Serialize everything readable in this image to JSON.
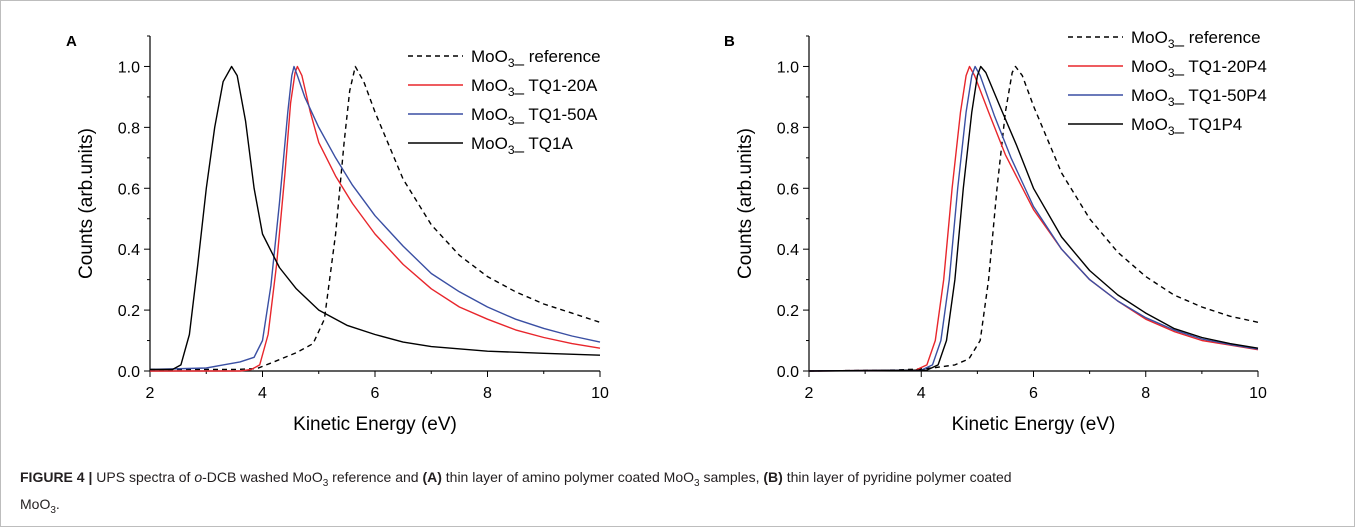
{
  "colors": {
    "red": "#e8262c",
    "blue": "#3a4fa3",
    "black": "#000000"
  },
  "chart_data": [
    {
      "type": "line",
      "panel_label": "A",
      "xlabel": "Kinetic Energy (eV)",
      "ylabel": "Counts (arb.units)",
      "xlim": [
        2,
        10
      ],
      "ylim": [
        0,
        1.1
      ],
      "xticks": [
        "2",
        "4",
        "6",
        "8",
        "10"
      ],
      "yticks": [
        "0.0",
        "0.2",
        "0.4",
        "0.6",
        "0.8",
        "1.0"
      ],
      "legend_position": "top-right",
      "series": [
        {
          "name": "MoO3_ reference",
          "legend_main": "MoO",
          "legend_sub": "3",
          "legend_suffix": "_ reference",
          "color": "#000000",
          "dash": true,
          "points": [
            [
              2,
              0.005
            ],
            [
              3.5,
              0.005
            ],
            [
              3.9,
              0.008
            ],
            [
              4.2,
              0.03
            ],
            [
              4.6,
              0.06
            ],
            [
              4.9,
              0.09
            ],
            [
              5.1,
              0.17
            ],
            [
              5.3,
              0.45
            ],
            [
              5.45,
              0.75
            ],
            [
              5.55,
              0.92
            ],
            [
              5.65,
              1.0
            ],
            [
              5.8,
              0.95
            ],
            [
              6.0,
              0.85
            ],
            [
              6.5,
              0.63
            ],
            [
              7.0,
              0.48
            ],
            [
              7.5,
              0.38
            ],
            [
              8.0,
              0.31
            ],
            [
              8.5,
              0.26
            ],
            [
              9.0,
              0.22
            ],
            [
              9.5,
              0.19
            ],
            [
              10,
              0.16
            ]
          ]
        },
        {
          "name": "MoO3_ TQ1-20A",
          "legend_main": "MoO",
          "legend_sub": "3",
          "legend_suffix": "_ TQ1-20A",
          "color": "#e8262c",
          "dash": false,
          "points": [
            [
              2,
              0.0
            ],
            [
              3.6,
              0.0
            ],
            [
              3.8,
              0.005
            ],
            [
              3.95,
              0.02
            ],
            [
              4.1,
              0.12
            ],
            [
              4.25,
              0.35
            ],
            [
              4.4,
              0.65
            ],
            [
              4.5,
              0.88
            ],
            [
              4.58,
              0.98
            ],
            [
              4.62,
              1.0
            ],
            [
              4.7,
              0.97
            ],
            [
              4.85,
              0.85
            ],
            [
              5.0,
              0.75
            ],
            [
              5.3,
              0.64
            ],
            [
              5.6,
              0.55
            ],
            [
              6.0,
              0.45
            ],
            [
              6.5,
              0.35
            ],
            [
              7.0,
              0.27
            ],
            [
              7.5,
              0.21
            ],
            [
              8.0,
              0.17
            ],
            [
              8.5,
              0.135
            ],
            [
              9.0,
              0.11
            ],
            [
              9.5,
              0.09
            ],
            [
              10,
              0.075
            ]
          ]
        },
        {
          "name": "MoO3_ TQ1-50A",
          "legend_main": "MoO",
          "legend_sub": "3",
          "legend_suffix": "_ TQ1-50A",
          "color": "#3a4fa3",
          "dash": false,
          "points": [
            [
              2,
              0.005
            ],
            [
              3.0,
              0.01
            ],
            [
              3.3,
              0.02
            ],
            [
              3.6,
              0.03
            ],
            [
              3.85,
              0.045
            ],
            [
              4.0,
              0.1
            ],
            [
              4.15,
              0.28
            ],
            [
              4.3,
              0.55
            ],
            [
              4.45,
              0.85
            ],
            [
              4.52,
              0.97
            ],
            [
              4.56,
              1.0
            ],
            [
              4.62,
              0.97
            ],
            [
              4.75,
              0.9
            ],
            [
              5.0,
              0.8
            ],
            [
              5.3,
              0.7
            ],
            [
              5.6,
              0.61
            ],
            [
              6.0,
              0.51
            ],
            [
              6.5,
              0.41
            ],
            [
              7.0,
              0.32
            ],
            [
              7.5,
              0.26
            ],
            [
              8.0,
              0.21
            ],
            [
              8.5,
              0.17
            ],
            [
              9.0,
              0.14
            ],
            [
              9.5,
              0.115
            ],
            [
              10,
              0.095
            ]
          ]
        },
        {
          "name": "MoO3_ TQ1A",
          "legend_main": "MoO",
          "legend_sub": "3",
          "legend_suffix": "_ TQ1A",
          "color": "#000000",
          "dash": false,
          "points": [
            [
              2,
              0.005
            ],
            [
              2.4,
              0.005
            ],
            [
              2.55,
              0.02
            ],
            [
              2.7,
              0.12
            ],
            [
              2.85,
              0.35
            ],
            [
              3.0,
              0.6
            ],
            [
              3.15,
              0.8
            ],
            [
              3.3,
              0.95
            ],
            [
              3.45,
              1.0
            ],
            [
              3.55,
              0.97
            ],
            [
              3.7,
              0.82
            ],
            [
              3.85,
              0.6
            ],
            [
              4.0,
              0.45
            ],
            [
              4.3,
              0.34
            ],
            [
              4.6,
              0.27
            ],
            [
              5.0,
              0.2
            ],
            [
              5.5,
              0.15
            ],
            [
              6.0,
              0.12
            ],
            [
              6.5,
              0.095
            ],
            [
              7.0,
              0.08
            ],
            [
              8.0,
              0.065
            ],
            [
              9.0,
              0.058
            ],
            [
              10,
              0.052
            ]
          ]
        }
      ]
    },
    {
      "type": "line",
      "panel_label": "B",
      "xlabel": "Kinetic Energy (eV)",
      "ylabel": "Counts (arb.units)",
      "xlim": [
        2,
        10
      ],
      "ylim": [
        0,
        1.1
      ],
      "xticks": [
        "2",
        "4",
        "6",
        "8",
        "10"
      ],
      "yticks": [
        "0.0",
        "0.2",
        "0.4",
        "0.6",
        "0.8",
        "1.0"
      ],
      "legend_position": "top-right",
      "series": [
        {
          "name": "MoO3_ reference",
          "legend_main": "MoO",
          "legend_sub": "3",
          "legend_suffix": "_ reference",
          "color": "#000000",
          "dash": true,
          "points": [
            [
              2,
              0.0
            ],
            [
              3.5,
              0.003
            ],
            [
              3.9,
              0.006
            ],
            [
              4.2,
              0.01
            ],
            [
              4.6,
              0.02
            ],
            [
              4.85,
              0.04
            ],
            [
              5.05,
              0.1
            ],
            [
              5.2,
              0.3
            ],
            [
              5.35,
              0.6
            ],
            [
              5.5,
              0.85
            ],
            [
              5.62,
              0.98
            ],
            [
              5.68,
              1.0
            ],
            [
              5.8,
              0.97
            ],
            [
              6.0,
              0.87
            ],
            [
              6.5,
              0.65
            ],
            [
              7.0,
              0.5
            ],
            [
              7.5,
              0.39
            ],
            [
              8.0,
              0.31
            ],
            [
              8.5,
              0.25
            ],
            [
              9.0,
              0.21
            ],
            [
              9.5,
              0.18
            ],
            [
              10,
              0.16
            ]
          ]
        },
        {
          "name": "MoO3_ TQ1-20P4",
          "legend_main": "MoO",
          "legend_sub": "3",
          "legend_suffix": "_ TQ1-20P4",
          "color": "#e8262c",
          "dash": false,
          "points": [
            [
              2,
              0.0
            ],
            [
              3.9,
              0.003
            ],
            [
              4.1,
              0.02
            ],
            [
              4.25,
              0.1
            ],
            [
              4.4,
              0.3
            ],
            [
              4.55,
              0.6
            ],
            [
              4.7,
              0.85
            ],
            [
              4.8,
              0.97
            ],
            [
              4.86,
              1.0
            ],
            [
              4.95,
              0.97
            ],
            [
              5.2,
              0.85
            ],
            [
              5.5,
              0.71
            ],
            [
              6.0,
              0.53
            ],
            [
              6.5,
              0.4
            ],
            [
              7.0,
              0.3
            ],
            [
              7.5,
              0.23
            ],
            [
              8.0,
              0.17
            ],
            [
              8.5,
              0.13
            ],
            [
              9.0,
              0.1
            ],
            [
              9.5,
              0.085
            ],
            [
              10,
              0.07
            ]
          ]
        },
        {
          "name": "MoO3_ TQ1-50P4",
          "legend_main": "MoO",
          "legend_sub": "3",
          "legend_suffix": "_ TQ1-50P4",
          "color": "#3a4fa3",
          "dash": false,
          "points": [
            [
              2,
              0.0
            ],
            [
              4.0,
              0.003
            ],
            [
              4.2,
              0.02
            ],
            [
              4.35,
              0.1
            ],
            [
              4.5,
              0.3
            ],
            [
              4.65,
              0.6
            ],
            [
              4.8,
              0.85
            ],
            [
              4.9,
              0.97
            ],
            [
              4.96,
              1.0
            ],
            [
              5.05,
              0.97
            ],
            [
              5.3,
              0.84
            ],
            [
              5.6,
              0.7
            ],
            [
              6.0,
              0.54
            ],
            [
              6.5,
              0.4
            ],
            [
              7.0,
              0.3
            ],
            [
              7.5,
              0.23
            ],
            [
              8.0,
              0.175
            ],
            [
              8.5,
              0.135
            ],
            [
              9.0,
              0.105
            ],
            [
              9.5,
              0.087
            ],
            [
              10,
              0.072
            ]
          ]
        },
        {
          "name": "MoO3_ TQ1P4",
          "legend_main": "MoO",
          "legend_sub": "3",
          "legend_suffix": "_ TQ1P4",
          "color": "#000000",
          "dash": false,
          "points": [
            [
              2,
              0.0
            ],
            [
              4.1,
              0.003
            ],
            [
              4.3,
              0.02
            ],
            [
              4.45,
              0.1
            ],
            [
              4.6,
              0.3
            ],
            [
              4.75,
              0.6
            ],
            [
              4.9,
              0.85
            ],
            [
              5.0,
              0.97
            ],
            [
              5.06,
              1.0
            ],
            [
              5.15,
              0.98
            ],
            [
              5.4,
              0.87
            ],
            [
              5.7,
              0.74
            ],
            [
              6.0,
              0.6
            ],
            [
              6.5,
              0.44
            ],
            [
              7.0,
              0.33
            ],
            [
              7.5,
              0.25
            ],
            [
              8.0,
              0.19
            ],
            [
              8.5,
              0.14
            ],
            [
              9.0,
              0.11
            ],
            [
              9.5,
              0.09
            ],
            [
              10,
              0.075
            ]
          ]
        }
      ]
    }
  ],
  "caption": {
    "figure_label": "FIGURE 4 |",
    "t1": " UPS spectra of ",
    "t2_italic": "o",
    "t3": "-DCB washed MoO",
    "sub1": "3",
    "t4": " reference and ",
    "b1": "(A)",
    "t5": " thin layer of amino polymer coated MoO",
    "sub2": "3",
    "t6": " samples, ",
    "b2": "(B)",
    "t7": " thin layer of pyridine polymer coated",
    "t8": "MoO",
    "sub3": "3",
    "t9": "."
  }
}
